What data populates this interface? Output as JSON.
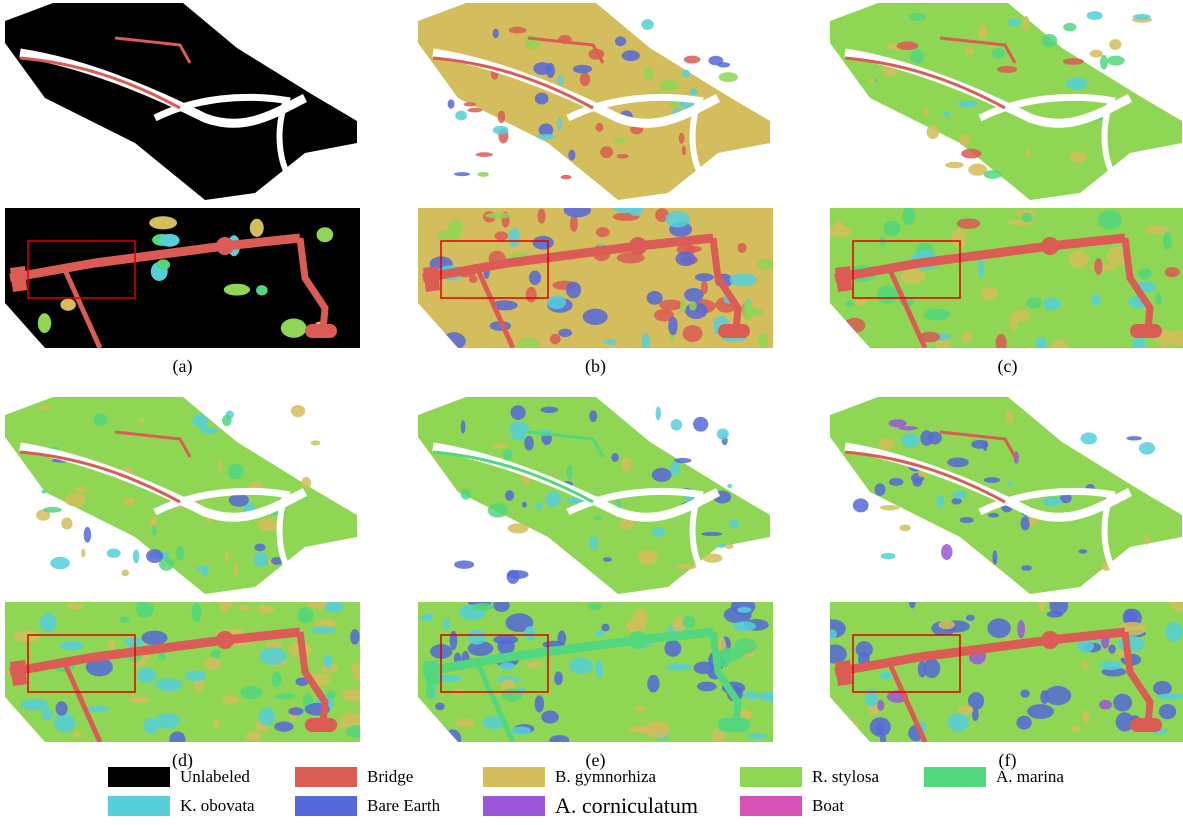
{
  "panels": [
    {
      "caption": "(a)",
      "variant": "gt"
    },
    {
      "caption": "(b)",
      "variant": "tan"
    },
    {
      "caption": "(c)",
      "variant": "green"
    },
    {
      "caption": "(d)",
      "variant": "mixed"
    },
    {
      "caption": "(e)",
      "variant": "blue"
    },
    {
      "caption": "(f)",
      "variant": "green2"
    }
  ],
  "legend": [
    {
      "label": "Unlabeled",
      "color": "#000000"
    },
    {
      "label": "Bridge",
      "color": "#db5b55"
    },
    {
      "label": "B. gymnorhiza",
      "color": "#d4bd5c"
    },
    {
      "label": "R. stylosa",
      "color": "#8fd654"
    },
    {
      "label": "A. marina",
      "color": "#52d67e"
    },
    {
      "label": "K. obovata",
      "color": "#55cfd9"
    },
    {
      "label": "Bare Earth",
      "color": "#5569d8"
    },
    {
      "label": "A. corniculatum",
      "color": "#9a57d8"
    },
    {
      "label": "Boat",
      "color": "#d652b4"
    }
  ]
}
